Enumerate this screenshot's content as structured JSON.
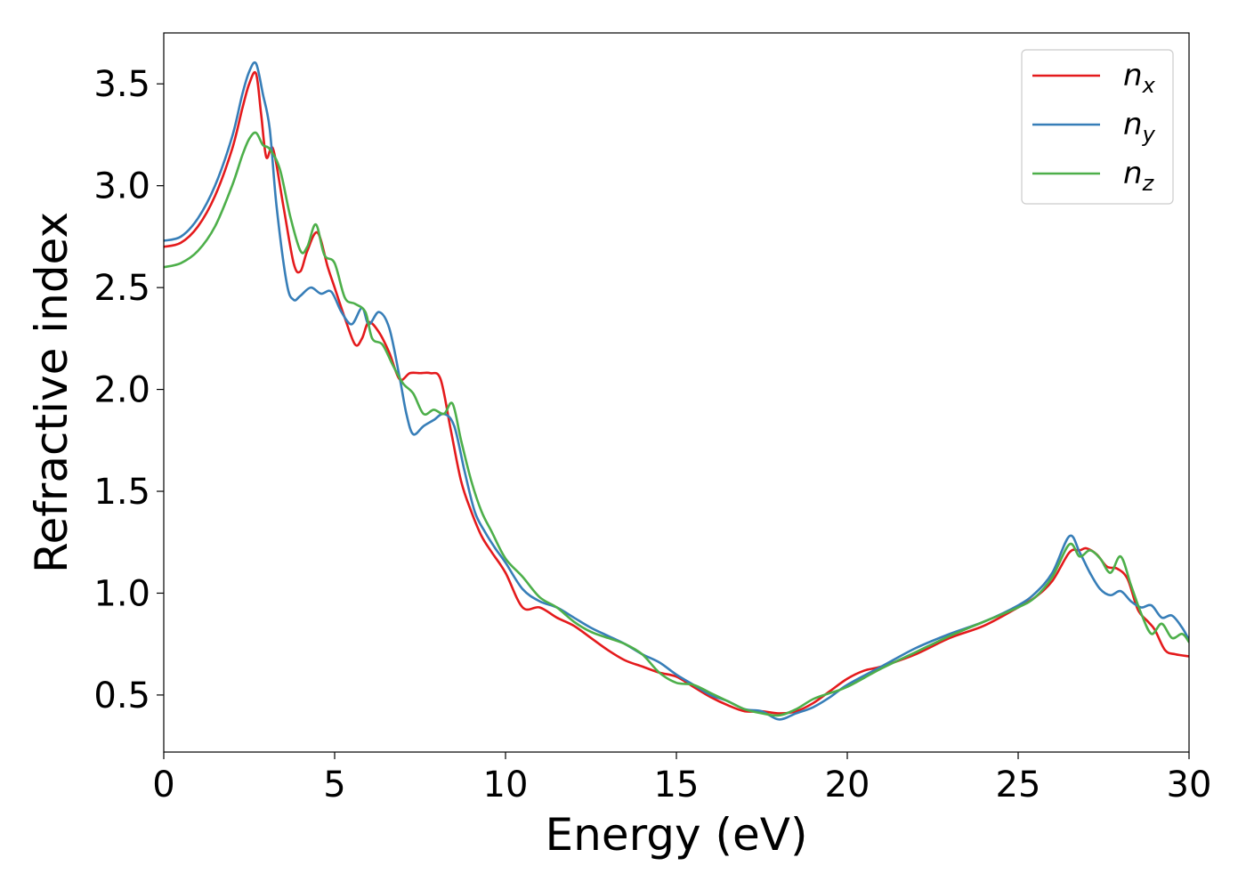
{
  "chart_data": {
    "type": "line",
    "title": "",
    "xlabel": "Energy (eV)",
    "ylabel": "Refractive index",
    "xlim": [
      0,
      30
    ],
    "ylim": [
      0.22,
      3.75
    ],
    "xticks": [
      0,
      5,
      10,
      15,
      20,
      25,
      30
    ],
    "xtick_labels": [
      "0",
      "5",
      "10",
      "15",
      "20",
      "25",
      "30"
    ],
    "yticks": [
      0.5,
      1.0,
      1.5,
      2.0,
      2.5,
      3.0,
      3.5
    ],
    "ytick_labels": [
      "0.5",
      "1.0",
      "1.5",
      "2.0",
      "2.5",
      "3.0",
      "3.5"
    ],
    "grid": false,
    "legend_position": "top-right",
    "series": [
      {
        "name": "n_x",
        "label_main": "n",
        "label_sub": "x",
        "color": "#e41a1c",
        "x": [
          0,
          0.5,
          1.0,
          1.5,
          2.0,
          2.3,
          2.5,
          2.7,
          2.85,
          3.0,
          3.2,
          3.5,
          3.8,
          4.0,
          4.2,
          4.5,
          4.8,
          5.0,
          5.3,
          5.6,
          5.8,
          6.0,
          6.3,
          6.6,
          6.9,
          7.2,
          7.5,
          7.8,
          8.1,
          8.4,
          8.7,
          9.0,
          9.3,
          9.6,
          10.0,
          10.5,
          11.0,
          11.5,
          12.0,
          12.5,
          13.0,
          13.5,
          14.0,
          14.5,
          15.0,
          15.5,
          16.0,
          16.5,
          17.0,
          17.5,
          18.0,
          18.5,
          19.0,
          19.5,
          20.0,
          20.5,
          21.0,
          22.0,
          23.0,
          24.0,
          25.0,
          25.5,
          26.0,
          26.5,
          26.8,
          27.0,
          27.3,
          27.6,
          27.9,
          28.2,
          28.5,
          28.8,
          29.0,
          29.3,
          29.6,
          30.0
        ],
        "y": [
          2.7,
          2.72,
          2.8,
          2.95,
          3.18,
          3.38,
          3.5,
          3.55,
          3.35,
          3.14,
          3.18,
          2.9,
          2.62,
          2.58,
          2.68,
          2.77,
          2.6,
          2.5,
          2.35,
          2.22,
          2.25,
          2.33,
          2.28,
          2.18,
          2.05,
          2.08,
          2.08,
          2.08,
          2.05,
          1.8,
          1.55,
          1.4,
          1.28,
          1.2,
          1.1,
          0.93,
          0.93,
          0.88,
          0.84,
          0.78,
          0.72,
          0.67,
          0.64,
          0.61,
          0.59,
          0.54,
          0.49,
          0.45,
          0.42,
          0.42,
          0.41,
          0.42,
          0.46,
          0.52,
          0.58,
          0.62,
          0.64,
          0.7,
          0.78,
          0.84,
          0.93,
          0.98,
          1.06,
          1.2,
          1.21,
          1.22,
          1.19,
          1.13,
          1.12,
          1.07,
          0.92,
          0.86,
          0.82,
          0.72,
          0.7,
          0.69
        ]
      },
      {
        "name": "n_y",
        "label_main": "n",
        "label_sub": "y",
        "color": "#377eb8",
        "x": [
          0,
          0.5,
          1.0,
          1.5,
          2.0,
          2.3,
          2.5,
          2.7,
          2.9,
          3.1,
          3.3,
          3.6,
          3.8,
          4.0,
          4.3,
          4.6,
          4.9,
          5.2,
          5.5,
          5.8,
          6.0,
          6.3,
          6.6,
          6.9,
          7.1,
          7.3,
          7.6,
          7.9,
          8.2,
          8.5,
          8.8,
          9.1,
          9.4,
          9.7,
          10.0,
          10.5,
          11.0,
          11.5,
          12.0,
          12.5,
          13.0,
          13.5,
          14.0,
          14.5,
          15.0,
          15.5,
          16.0,
          16.5,
          17.0,
          17.5,
          18.0,
          18.5,
          19.0,
          19.5,
          20.0,
          21.0,
          22.0,
          23.0,
          24.0,
          25.0,
          25.5,
          26.0,
          26.5,
          26.8,
          27.1,
          27.4,
          27.7,
          28.0,
          28.3,
          28.6,
          28.9,
          29.2,
          29.5,
          29.8,
          30.0
        ],
        "y": [
          2.73,
          2.75,
          2.84,
          3.0,
          3.24,
          3.45,
          3.56,
          3.6,
          3.45,
          3.28,
          2.9,
          2.52,
          2.44,
          2.46,
          2.5,
          2.47,
          2.48,
          2.38,
          2.32,
          2.4,
          2.32,
          2.38,
          2.3,
          2.06,
          1.88,
          1.78,
          1.82,
          1.85,
          1.88,
          1.82,
          1.6,
          1.4,
          1.3,
          1.22,
          1.15,
          1.02,
          0.96,
          0.93,
          0.88,
          0.83,
          0.79,
          0.75,
          0.7,
          0.66,
          0.6,
          0.55,
          0.5,
          0.47,
          0.43,
          0.42,
          0.38,
          0.41,
          0.44,
          0.49,
          0.55,
          0.64,
          0.73,
          0.8,
          0.86,
          0.94,
          1.0,
          1.1,
          1.28,
          1.2,
          1.1,
          1.02,
          0.99,
          1.01,
          0.96,
          0.93,
          0.94,
          0.88,
          0.89,
          0.83,
          0.77
        ]
      },
      {
        "name": "n_z",
        "label_main": "n",
        "label_sub": "z",
        "color": "#4daf4a",
        "x": [
          0,
          0.5,
          1.0,
          1.5,
          2.0,
          2.3,
          2.5,
          2.7,
          2.9,
          3.1,
          3.4,
          3.7,
          4.0,
          4.2,
          4.45,
          4.7,
          5.0,
          5.3,
          5.6,
          5.9,
          6.1,
          6.4,
          6.7,
          7.0,
          7.3,
          7.6,
          7.9,
          8.2,
          8.45,
          8.7,
          9.0,
          9.3,
          9.6,
          10.0,
          10.5,
          11.0,
          11.5,
          12.0,
          12.5,
          13.0,
          13.5,
          14.0,
          14.5,
          15.0,
          15.5,
          16.0,
          16.5,
          17.0,
          17.5,
          18.0,
          18.5,
          19.0,
          19.5,
          20.0,
          21.0,
          22.0,
          23.0,
          24.0,
          25.0,
          25.5,
          26.0,
          26.5,
          26.8,
          27.1,
          27.4,
          27.7,
          28.0,
          28.3,
          28.6,
          28.9,
          29.2,
          29.5,
          29.8,
          30.0
        ],
        "y": [
          2.6,
          2.62,
          2.68,
          2.8,
          3.0,
          3.15,
          3.23,
          3.26,
          3.2,
          3.18,
          3.08,
          2.85,
          2.68,
          2.7,
          2.81,
          2.66,
          2.62,
          2.45,
          2.42,
          2.38,
          2.25,
          2.22,
          2.12,
          2.03,
          1.98,
          1.88,
          1.9,
          1.88,
          1.93,
          1.75,
          1.55,
          1.4,
          1.3,
          1.17,
          1.08,
          0.98,
          0.93,
          0.86,
          0.81,
          0.78,
          0.75,
          0.7,
          0.61,
          0.56,
          0.55,
          0.51,
          0.47,
          0.43,
          0.41,
          0.4,
          0.43,
          0.48,
          0.51,
          0.54,
          0.63,
          0.71,
          0.79,
          0.86,
          0.93,
          0.98,
          1.08,
          1.24,
          1.18,
          1.21,
          1.17,
          1.1,
          1.18,
          1.04,
          0.9,
          0.8,
          0.85,
          0.78,
          0.8,
          0.76
        ]
      }
    ]
  }
}
